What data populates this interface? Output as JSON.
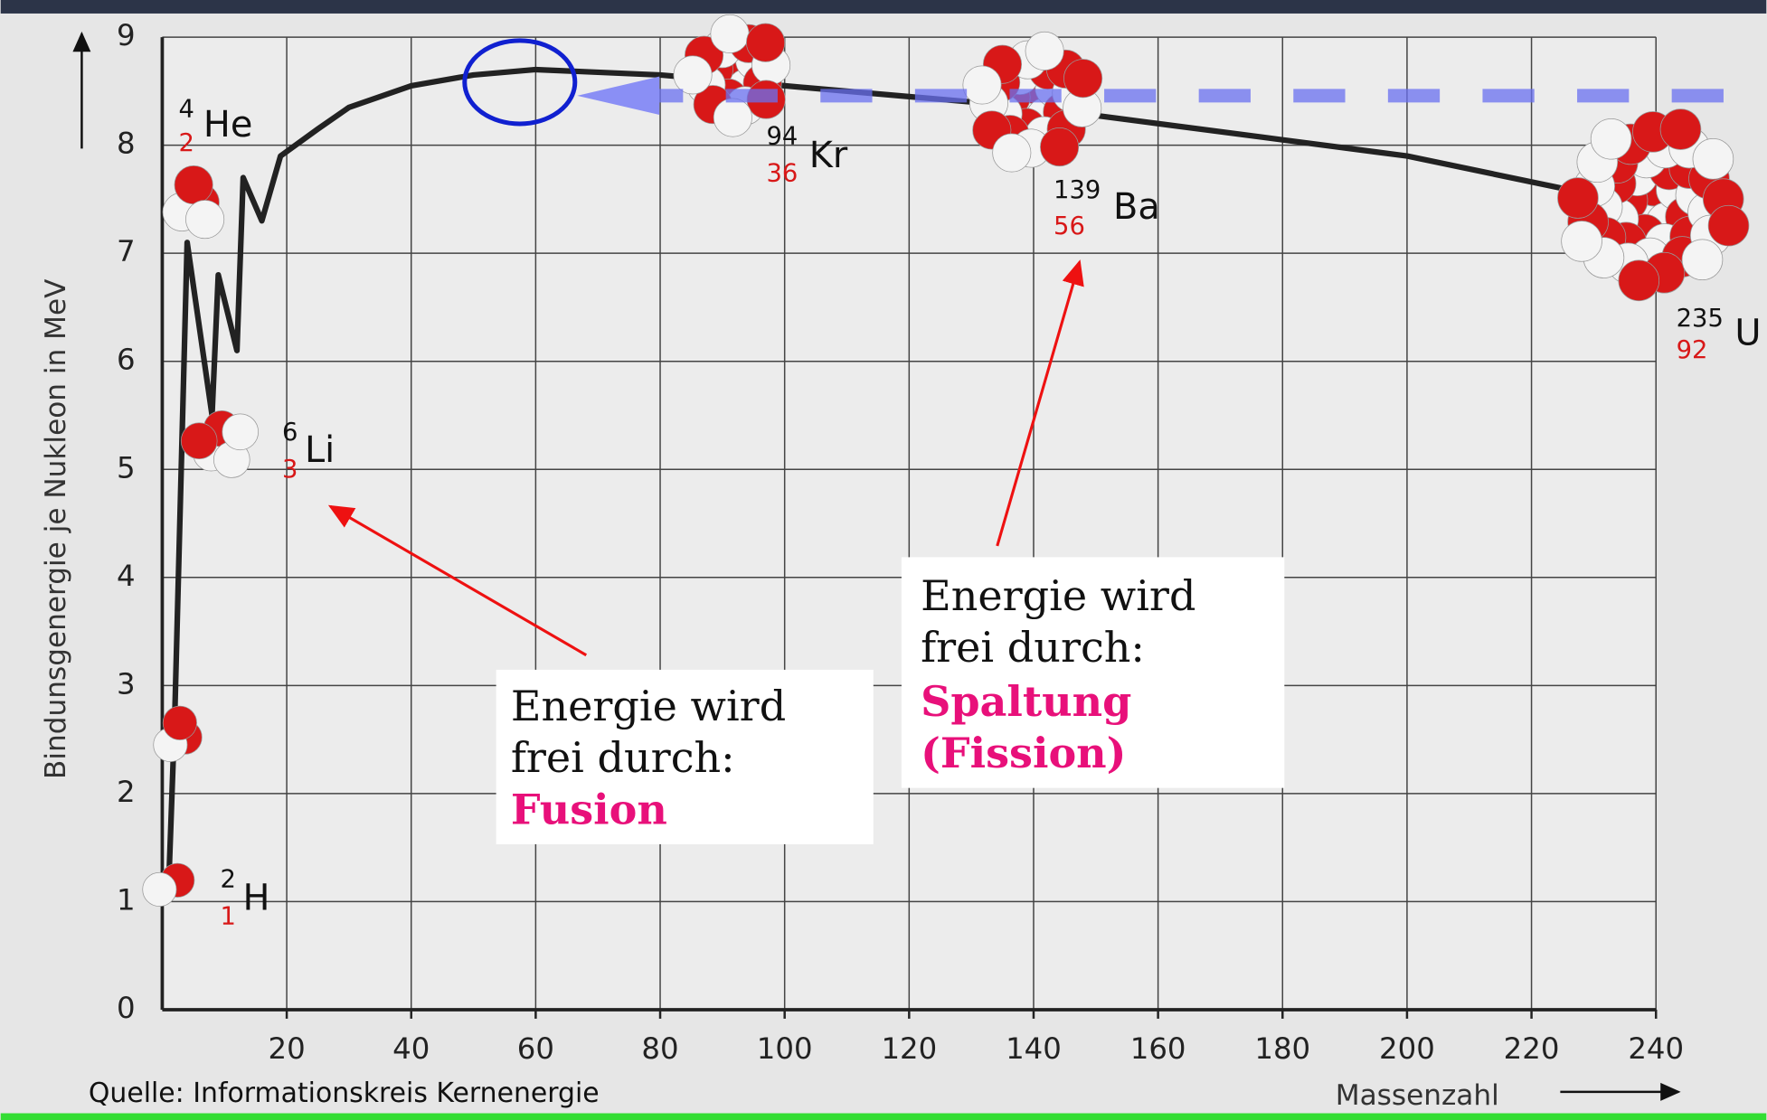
{
  "chart_data": {
    "type": "line",
    "y_label": "Bindunsgenergie je Nukleon in MeV",
    "x_label": "Massenzahl",
    "source": "Quelle: Informationskreis Kernenergie",
    "x": [
      1,
      2,
      4,
      8,
      9,
      12,
      13,
      16,
      19,
      25,
      30,
      40,
      50,
      60,
      80,
      100,
      120,
      140,
      160,
      180,
      200,
      225
    ],
    "values": [
      1.1,
      2.7,
      7.1,
      5.5,
      6.8,
      6.1,
      7.7,
      7.3,
      7.9,
      8.15,
      8.35,
      8.55,
      8.65,
      8.7,
      8.65,
      8.55,
      8.45,
      8.35,
      8.2,
      8.05,
      7.9,
      7.6
    ],
    "color": "#222222",
    "xlim": [
      0,
      240
    ],
    "ylim": [
      0,
      9
    ],
    "xticks": [
      20,
      40,
      60,
      80,
      100,
      120,
      140,
      160,
      180,
      200,
      220,
      240
    ],
    "yticks": [
      0,
      1,
      2,
      3,
      4,
      5,
      6,
      7,
      8,
      9
    ],
    "grid": true,
    "nuclides": [
      {
        "mass": "2",
        "charge": "1",
        "symbol": "H"
      },
      {
        "mass": "4",
        "charge": "2",
        "symbol": "He"
      },
      {
        "mass": "6",
        "charge": "3",
        "symbol": "Li"
      },
      {
        "mass": "94",
        "charge": "36",
        "symbol": "Kr"
      },
      {
        "mass": "139",
        "charge": "56",
        "symbol": "Ba"
      },
      {
        "mass": "235",
        "charge": "92",
        "symbol": "U"
      }
    ],
    "annotations": [
      {
        "lines": [
          "Energie wird",
          "frei durch:"
        ],
        "highlight": [
          "Fusion"
        ]
      },
      {
        "lines": [
          "Energie wird",
          "frei durch:"
        ],
        "highlight": [
          "Spaltung",
          "(Fission)"
        ]
      }
    ]
  }
}
